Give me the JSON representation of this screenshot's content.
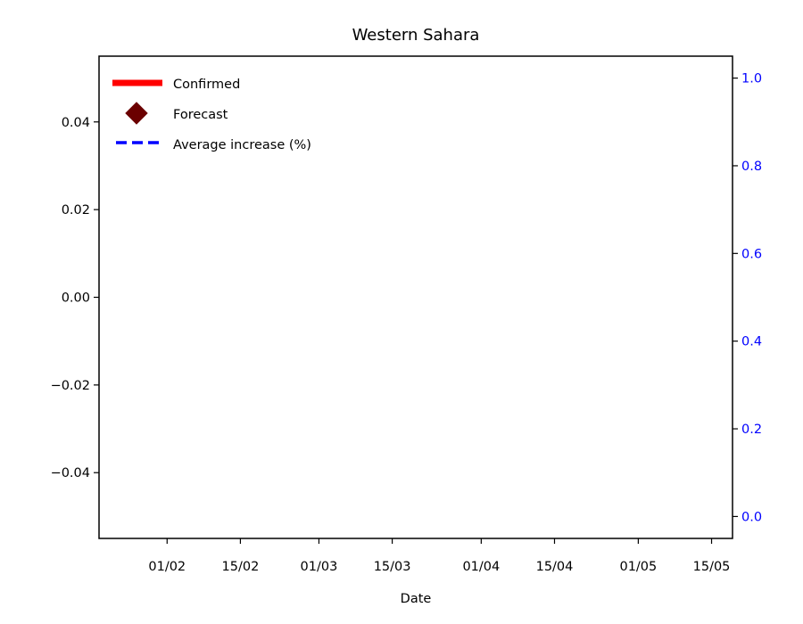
{
  "chart_data": {
    "type": "line",
    "title": "Western Sahara",
    "xlabel": "Date",
    "ylabel": "",
    "y2label": "",
    "x_ticks": [
      "01/02",
      "15/02",
      "01/03",
      "15/03",
      "01/04",
      "15/04",
      "01/05",
      "15/05"
    ],
    "x_tick_days": [
      31,
      45,
      60,
      74,
      91,
      105,
      121,
      135
    ],
    "xlim_days": [
      18,
      139
    ],
    "ylim": [
      -0.055,
      0.055
    ],
    "y_ticks": [
      "0.04",
      "0.02",
      "0.00",
      "−0.02",
      "−0.04"
    ],
    "y_tick_values": [
      0.04,
      0.02,
      0.0,
      -0.02,
      -0.04
    ],
    "y2lim": [
      -0.05,
      1.05
    ],
    "y2_ticks": [
      "1.0",
      "0.8",
      "0.6",
      "0.4",
      "0.2",
      "0.0"
    ],
    "y2_tick_values": [
      1.0,
      0.8,
      0.6,
      0.4,
      0.2,
      0.0
    ],
    "y2_color": "#0000ff",
    "series": [
      {
        "name": "Confirmed",
        "color": "#ff0000",
        "style": "solid-thick",
        "values": []
      },
      {
        "name": "Forecast",
        "color": "#6b0000",
        "style": "diamond-marker",
        "values": []
      },
      {
        "name": "Average increase (%)",
        "color": "#0000ff",
        "style": "dashed",
        "axis": "right",
        "values": []
      }
    ],
    "legend_position": "top-left",
    "grid": false
  }
}
